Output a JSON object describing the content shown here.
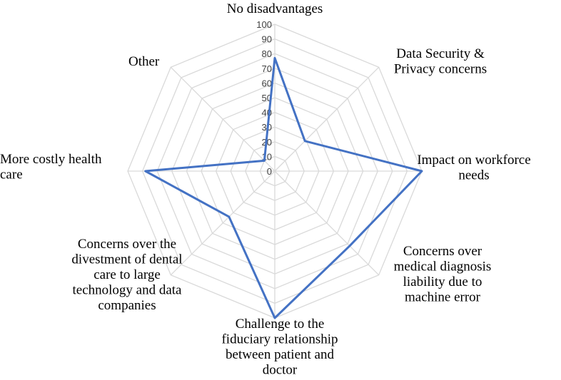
{
  "chart_data": {
    "type": "radar",
    "title": "",
    "categories": [
      "No disadvantages",
      "Data Security & Privacy concerns",
      "Impact on workforce needs",
      "Concerns over medical diagnosis liability due to machine error",
      "Challenge to the fiduciary relationship between patient and doctor",
      "Concerns over the divestment of dental care to large technology and data companies",
      "More costly health care",
      "Other"
    ],
    "category_label_lines": [
      [
        "No disadvantages"
      ],
      [
        "Data Security &",
        "Privacy concerns"
      ],
      [
        "Impact on workforce",
        "needs"
      ],
      [
        "Concerns over",
        "medical diagnosis",
        "liability due to",
        "machine error"
      ],
      [
        "Challenge to the",
        "fiduciary relationship",
        "between patient and",
        "doctor"
      ],
      [
        "Concerns over the",
        "divestment of dental",
        "care to large",
        "technology and data",
        "companies"
      ],
      [
        "More costly health",
        "care"
      ],
      [
        "Other"
      ]
    ],
    "series": [
      {
        "values": [
          77,
          29,
          100,
          72,
          100,
          44,
          88,
          10
        ]
      }
    ],
    "rlim": [
      0,
      100
    ],
    "ticks": [
      0,
      10,
      20,
      30,
      40,
      50,
      60,
      70,
      80,
      90,
      100
    ],
    "grid": true,
    "legend": "none",
    "colors": {
      "series": "#4472C4",
      "grid": "#d9d9d9",
      "tick_text": "#404040"
    }
  }
}
